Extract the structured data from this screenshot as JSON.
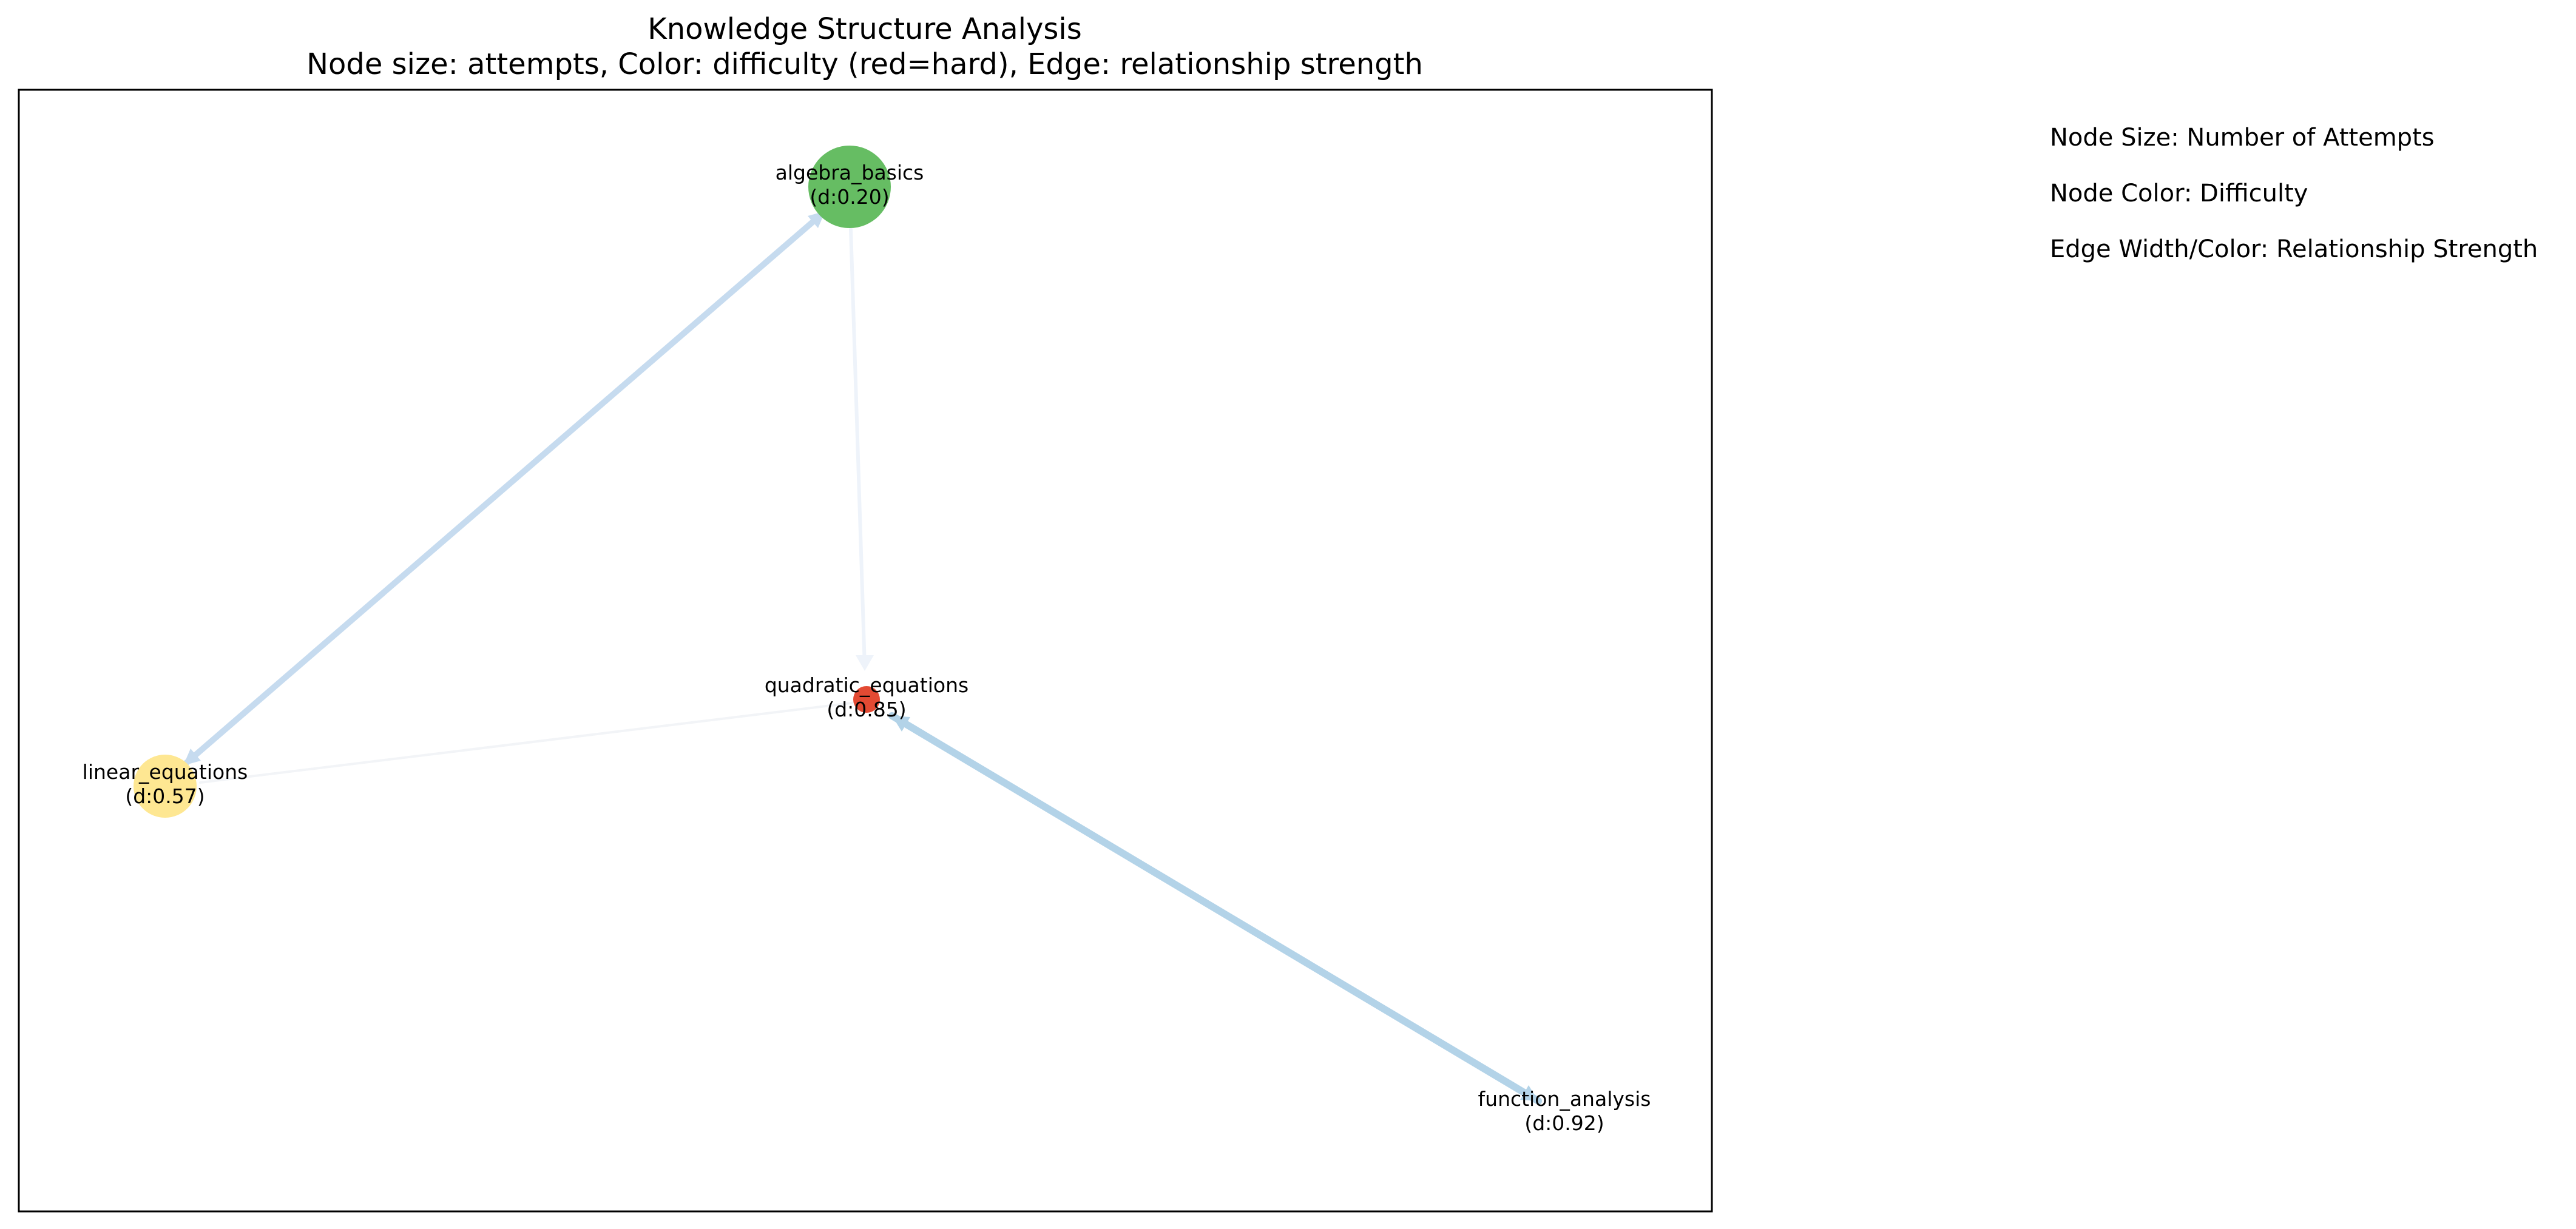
{
  "title": {
    "line1": "Knowledge Structure Analysis",
    "line2": "Node size: attempts, Color: difficulty (red=hard), Edge: relationship strength"
  },
  "legend": {
    "node_size": "Node Size: Number of Attempts",
    "node_color": "Node Color: Difficulty",
    "edge": "Edge Width/Color: Relationship Strength"
  },
  "nodes": [
    {
      "id": "algebra_basics",
      "name": "algebra_basics",
      "difficulty_label": "(d:0.20)",
      "difficulty": 0.2,
      "color": "#66bd63"
    },
    {
      "id": "quadratic_equations",
      "name": "quadratic_equations",
      "difficulty_label": "(d:0.85)",
      "difficulty": 0.85,
      "color": "#e34a33"
    },
    {
      "id": "linear_equations",
      "name": "linear_equations",
      "difficulty_label": "(d:0.57)",
      "difficulty": 0.57,
      "color": "#fee792"
    },
    {
      "id": "function_analysis",
      "name": "function_analysis",
      "difficulty_label": "(d:0.92)",
      "difficulty": 0.92,
      "color": "#ffffff"
    }
  ],
  "edges": [
    {
      "from": "algebra_basics",
      "to": "linear_equations",
      "color": "#c6dbef"
    },
    {
      "from": "linear_equations",
      "to": "algebra_basics",
      "color": "#c6dbef"
    },
    {
      "from": "algebra_basics",
      "to": "quadratic_equations",
      "color": "#eef3fa"
    },
    {
      "from": "quadratic_equations",
      "to": "linear_equations",
      "color": "#f2f4f7"
    },
    {
      "from": "quadratic_equations",
      "to": "function_analysis",
      "color": "#b3d3e8"
    },
    {
      "from": "function_analysis",
      "to": "quadratic_equations",
      "color": "#b3d3e8"
    }
  ]
}
